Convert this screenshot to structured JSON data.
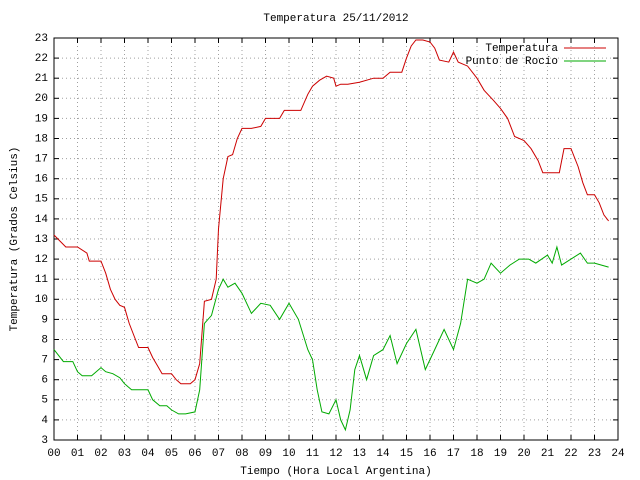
{
  "chart_data": {
    "type": "line",
    "title": "Temperatura 25/11/2012",
    "x_label": "Tiempo (Hora Local Argentina)",
    "y_label": "Temperatura (Grados Celsius)",
    "xlim": [
      0,
      24
    ],
    "ylim": [
      3,
      23
    ],
    "xticks": [
      {
        "value": 0,
        "label": "00"
      },
      {
        "value": 1,
        "label": "01"
      },
      {
        "value": 2,
        "label": "02"
      },
      {
        "value": 3,
        "label": "03"
      },
      {
        "value": 4,
        "label": "04"
      },
      {
        "value": 5,
        "label": "05"
      },
      {
        "value": 6,
        "label": "06"
      },
      {
        "value": 7,
        "label": "07"
      },
      {
        "value": 8,
        "label": "08"
      },
      {
        "value": 9,
        "label": "09"
      },
      10,
      11,
      12,
      13,
      14,
      15,
      16,
      17,
      18,
      19,
      20,
      21,
      22,
      23,
      24
    ],
    "yticks": [
      3,
      4,
      5,
      6,
      7,
      8,
      9,
      10,
      11,
      12,
      13,
      14,
      15,
      16,
      17,
      18,
      19,
      20,
      21,
      22,
      23
    ],
    "grid": true,
    "legend": "top-right",
    "series": [
      {
        "name": "Temperatura",
        "color": "#cc0000",
        "x": [
          0,
          0.25,
          0.5,
          1,
          1.4,
          1.5,
          2,
          2.2,
          2.4,
          2.6,
          2.8,
          3,
          3.2,
          3.4,
          3.6,
          4,
          4.2,
          4.4,
          4.6,
          5,
          5.2,
          5.4,
          5.8,
          6,
          6.2,
          6.4,
          6.7,
          6.9,
          7,
          7.2,
          7.4,
          7.6,
          7.8,
          8,
          8.4,
          8.8,
          9,
          9.6,
          9.8,
          10.5,
          10.8,
          11,
          11.3,
          11.6,
          11.9,
          12,
          12.2,
          12.5,
          13,
          13.6,
          14,
          14.3,
          14.8,
          15,
          15.2,
          15.4,
          15.7,
          16,
          16.2,
          16.4,
          16.8,
          17,
          17.2,
          17.6,
          18,
          18.3,
          18.7,
          19,
          19.3,
          19.6,
          20,
          20.3,
          20.6,
          20.8,
          21.2,
          21.5,
          21.7,
          22,
          22.3,
          22.5,
          22.7,
          23,
          23.2,
          23.4,
          23.6
        ],
        "values": [
          13.2,
          12.9,
          12.6,
          12.6,
          12.3,
          11.9,
          11.9,
          11.3,
          10.5,
          10.0,
          9.7,
          9.6,
          8.8,
          8.2,
          7.6,
          7.6,
          7.1,
          6.7,
          6.3,
          6.3,
          6.0,
          5.8,
          5.8,
          6.0,
          6.8,
          9.9,
          10.0,
          11.0,
          13.5,
          16.0,
          17.1,
          17.2,
          18.0,
          18.5,
          18.5,
          18.6,
          19.0,
          19.0,
          19.4,
          19.4,
          20.2,
          20.6,
          20.9,
          21.1,
          21.0,
          20.6,
          20.7,
          20.7,
          20.8,
          21.0,
          21.0,
          21.3,
          21.3,
          22.0,
          22.6,
          22.9,
          22.9,
          22.8,
          22.5,
          21.9,
          21.8,
          22.3,
          21.8,
          21.6,
          21.0,
          20.4,
          19.9,
          19.5,
          19.0,
          18.1,
          17.9,
          17.5,
          16.9,
          16.3,
          16.3,
          16.3,
          17.5,
          17.5,
          16.6,
          15.8,
          15.2,
          15.2,
          14.8,
          14.2,
          13.9
        ]
      },
      {
        "name": "Punto de Rocío",
        "color": "#00aa00",
        "x": [
          0,
          0.2,
          0.4,
          0.8,
          1,
          1.2,
          1.6,
          2,
          2.2,
          2.5,
          2.8,
          3,
          3.3,
          4,
          4.2,
          4.5,
          4.8,
          5,
          5.3,
          5.6,
          6,
          6.2,
          6.4,
          6.7,
          7,
          7.2,
          7.4,
          7.7,
          8,
          8.4,
          8.8,
          9.2,
          9.6,
          10,
          10.4,
          10.8,
          11,
          11.2,
          11.4,
          11.7,
          12,
          12.2,
          12.4,
          12.6,
          12.8,
          13,
          13.3,
          13.6,
          14,
          14.3,
          14.6,
          15,
          15.4,
          15.8,
          16.2,
          16.6,
          17,
          17.3,
          17.6,
          18,
          18.3,
          18.6,
          19,
          19.4,
          19.8,
          20.2,
          20.5,
          21,
          21.2,
          21.4,
          21.6,
          22,
          22.4,
          22.7,
          23,
          23.3,
          23.6
        ],
        "values": [
          7.5,
          7.2,
          6.9,
          6.9,
          6.4,
          6.2,
          6.2,
          6.6,
          6.4,
          6.3,
          6.1,
          5.8,
          5.5,
          5.5,
          5.0,
          4.7,
          4.7,
          4.5,
          4.3,
          4.3,
          4.4,
          5.5,
          8.8,
          9.2,
          10.5,
          11.0,
          10.6,
          10.8,
          10.3,
          9.3,
          9.8,
          9.7,
          9.0,
          9.8,
          9.0,
          7.5,
          7.0,
          5.5,
          4.4,
          4.3,
          5.0,
          4.0,
          3.5,
          4.5,
          6.5,
          7.2,
          6.0,
          7.2,
          7.5,
          8.2,
          6.8,
          7.8,
          8.5,
          6.5,
          7.5,
          8.5,
          7.5,
          8.8,
          11.0,
          10.8,
          11.0,
          11.8,
          11.3,
          11.7,
          12.0,
          12.0,
          11.8,
          12.2,
          11.8,
          12.6,
          11.7,
          12.0,
          12.3,
          11.8,
          11.8,
          11.7,
          11.6
        ]
      }
    ]
  }
}
